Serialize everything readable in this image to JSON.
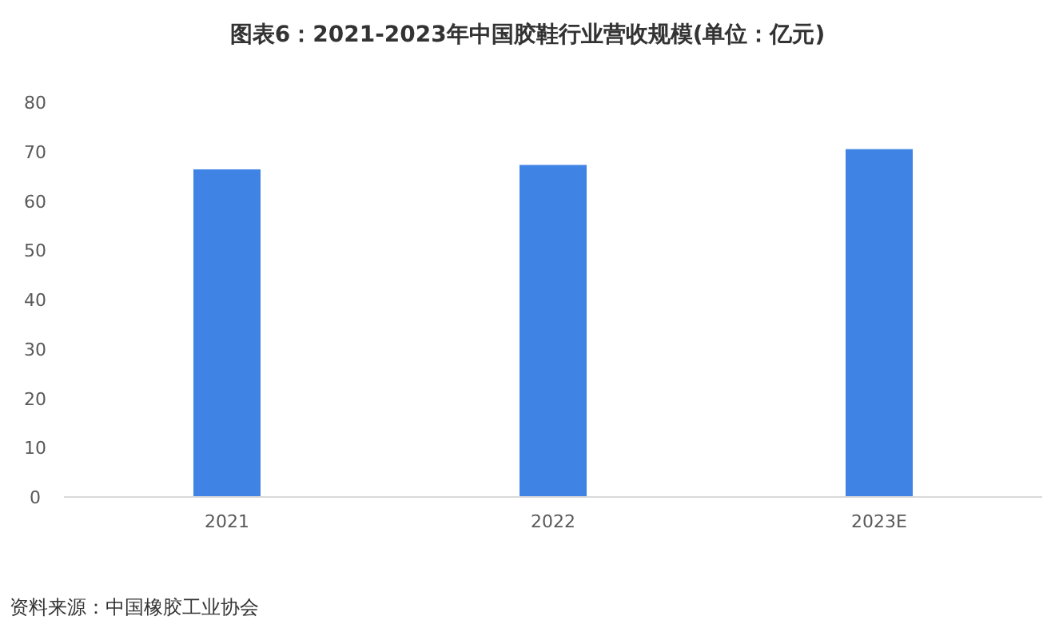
{
  "chart_data": {
    "type": "bar",
    "title": "图表6：2021-2023年中国胶鞋行业营收规模(单位：亿元)",
    "categories": [
      "2021",
      "2022",
      "2023E"
    ],
    "values": [
      66.4,
      67.3,
      70.5
    ],
    "color": "#3f84e5",
    "ylim": [
      0,
      80
    ],
    "yticks": [
      0,
      10,
      20,
      30,
      40,
      50,
      60,
      70,
      80
    ],
    "grid": false,
    "annotations": [
      "资料来源：中国橡胶工业协会"
    ]
  }
}
